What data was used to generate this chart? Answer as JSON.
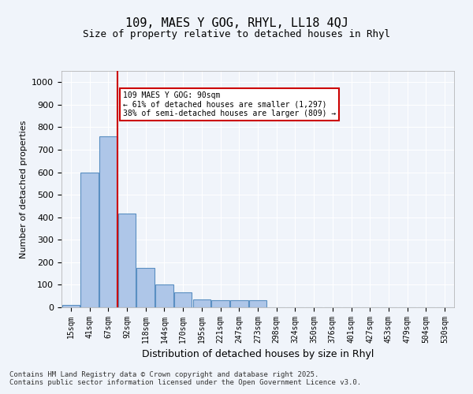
{
  "title1": "109, MAES Y GOG, RHYL, LL18 4QJ",
  "title2": "Size of property relative to detached houses in Rhyl",
  "xlabel": "Distribution of detached houses by size in Rhyl",
  "ylabel": "Number of detached properties",
  "bin_labels": [
    "15sqm",
    "41sqm",
    "67sqm",
    "92sqm",
    "118sqm",
    "144sqm",
    "170sqm",
    "195sqm",
    "221sqm",
    "247sqm",
    "273sqm",
    "298sqm",
    "324sqm",
    "350sqm",
    "376sqm",
    "401sqm",
    "427sqm",
    "453sqm",
    "479sqm",
    "504sqm",
    "530sqm"
  ],
  "bar_heights": [
    10,
    600,
    760,
    415,
    175,
    100,
    65,
    35,
    30,
    30,
    30,
    0,
    0,
    0,
    0,
    0,
    0,
    0,
    0,
    0,
    0
  ],
  "bar_color": "#aec6e8",
  "bar_edge_color": "#5a8fc2",
  "property_line_x": 3,
  "property_size": "90sqm",
  "annotation_text": "109 MAES Y GOG: 90sqm\n← 61% of detached houses are smaller (1,297)\n38% of semi-detached houses are larger (809) →",
  "annotation_box_color": "#ffffff",
  "annotation_box_edge": "#cc0000",
  "vline_color": "#cc0000",
  "ylim": [
    0,
    1050
  ],
  "yticks": [
    0,
    100,
    200,
    300,
    400,
    500,
    600,
    700,
    800,
    900,
    1000
  ],
  "background_color": "#f0f4fa",
  "grid_color": "#ffffff",
  "footer": "Contains HM Land Registry data © Crown copyright and database right 2025.\nContains public sector information licensed under the Open Government Licence v3.0."
}
